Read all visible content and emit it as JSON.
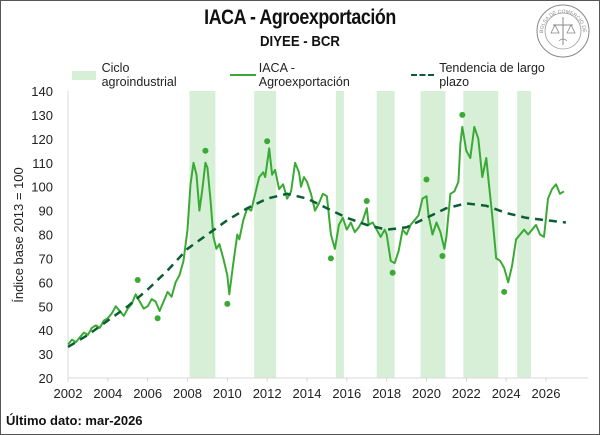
{
  "header": {
    "title": "IACA - Agroexportación",
    "subtitle": "DIYEE - BCR",
    "logo": "bolsa-de-comercio-de-rosario-seal-icon",
    "logo_text": "BOLSA DE COMERCIO DE ROSARIO"
  },
  "footer": {
    "label": "Último dato: mar-2026"
  },
  "colors": {
    "band": "#d6efd6",
    "series": "#3aaa35",
    "trend": "#0b5e34",
    "points": "#3aaa35"
  },
  "chart_data": {
    "type": "line",
    "title": "IACA - Agroexportación",
    "subtitle": "DIYEE - BCR",
    "xlabel": "",
    "ylabel": "Índice base 2013 = 100",
    "xlim": [
      2002,
      2028
    ],
    "ylim": [
      20,
      140
    ],
    "x_ticks": [
      2002,
      2004,
      2006,
      2008,
      2010,
      2012,
      2014,
      2016,
      2018,
      2020,
      2022,
      2024,
      2026
    ],
    "y_ticks": [
      20,
      30,
      40,
      50,
      60,
      70,
      80,
      90,
      100,
      110,
      120,
      130,
      140
    ],
    "grid": false,
    "legend": {
      "position": "top",
      "entries": [
        "Ciclo agroindustrial",
        "IACA - Agroexportación",
        "Tendencia de largo plazo"
      ]
    },
    "bands": [
      {
        "name": "Ciclo agroindustrial",
        "start": 2008.1,
        "end": 2009.4
      },
      {
        "name": "Ciclo agroindustrial",
        "start": 2011.35,
        "end": 2012.45
      },
      {
        "name": "Ciclo agroindustrial",
        "start": 2015.45,
        "end": 2015.85
      },
      {
        "name": "Ciclo agroindustrial",
        "start": 2017.5,
        "end": 2018.4
      },
      {
        "name": "Ciclo agroindustrial",
        "start": 2019.7,
        "end": 2020.95
      },
      {
        "name": "Ciclo agroindustrial",
        "start": 2021.85,
        "end": 2023.6
      },
      {
        "name": "Ciclo agroindustrial",
        "start": 2024.55,
        "end": 2025.25
      }
    ],
    "series": [
      {
        "name": "IACA - Agroexportación",
        "style": "solid",
        "points": [
          [
            2002.0,
            34
          ],
          [
            2002.2,
            36
          ],
          [
            2002.4,
            35
          ],
          [
            2002.6,
            37
          ],
          [
            2002.8,
            39
          ],
          [
            2003.0,
            38
          ],
          [
            2003.2,
            41
          ],
          [
            2003.4,
            42
          ],
          [
            2003.6,
            41
          ],
          [
            2003.8,
            44
          ],
          [
            2004.0,
            45
          ],
          [
            2004.2,
            47
          ],
          [
            2004.4,
            50
          ],
          [
            2004.6,
            48
          ],
          [
            2004.8,
            46
          ],
          [
            2005.0,
            49
          ],
          [
            2005.2,
            51
          ],
          [
            2005.4,
            55
          ],
          [
            2005.6,
            52
          ],
          [
            2005.8,
            49
          ],
          [
            2006.0,
            50
          ],
          [
            2006.2,
            53
          ],
          [
            2006.4,
            52
          ],
          [
            2006.6,
            48
          ],
          [
            2006.8,
            52
          ],
          [
            2007.0,
            56
          ],
          [
            2007.2,
            54
          ],
          [
            2007.4,
            60
          ],
          [
            2007.6,
            63
          ],
          [
            2007.8,
            69
          ],
          [
            2008.0,
            82
          ],
          [
            2008.15,
            101
          ],
          [
            2008.3,
            110
          ],
          [
            2008.45,
            105
          ],
          [
            2008.6,
            90
          ],
          [
            2008.75,
            99
          ],
          [
            2008.9,
            110
          ],
          [
            2009.0,
            108
          ],
          [
            2009.15,
            95
          ],
          [
            2009.3,
            79
          ],
          [
            2009.45,
            74
          ],
          [
            2009.6,
            76
          ],
          [
            2009.8,
            70
          ],
          [
            2010.0,
            63
          ],
          [
            2010.1,
            55
          ],
          [
            2010.3,
            68
          ],
          [
            2010.5,
            80
          ],
          [
            2010.6,
            78
          ],
          [
            2010.8,
            86
          ],
          [
            2011.0,
            91
          ],
          [
            2011.2,
            90
          ],
          [
            2011.4,
            97
          ],
          [
            2011.6,
            104
          ],
          [
            2011.8,
            106
          ],
          [
            2011.9,
            104
          ],
          [
            2012.0,
            110
          ],
          [
            2012.1,
            116
          ],
          [
            2012.25,
            105
          ],
          [
            2012.4,
            107
          ],
          [
            2012.6,
            99
          ],
          [
            2012.8,
            101
          ],
          [
            2013.0,
            95
          ],
          [
            2013.2,
            98
          ],
          [
            2013.4,
            110
          ],
          [
            2013.6,
            106
          ],
          [
            2013.7,
            100
          ],
          [
            2013.85,
            104
          ],
          [
            2014.0,
            102
          ],
          [
            2014.2,
            97
          ],
          [
            2014.4,
            90
          ],
          [
            2014.6,
            93
          ],
          [
            2014.8,
            97
          ],
          [
            2015.0,
            96
          ],
          [
            2015.2,
            80
          ],
          [
            2015.4,
            74
          ],
          [
            2015.6,
            84
          ],
          [
            2015.8,
            87
          ],
          [
            2016.0,
            82
          ],
          [
            2016.2,
            85
          ],
          [
            2016.4,
            81
          ],
          [
            2016.6,
            83
          ],
          [
            2016.8,
            86
          ],
          [
            2017.0,
            91
          ],
          [
            2017.1,
            84
          ],
          [
            2017.3,
            85
          ],
          [
            2017.5,
            82
          ],
          [
            2017.7,
            79
          ],
          [
            2017.9,
            82
          ],
          [
            2018.0,
            80
          ],
          [
            2018.2,
            69
          ],
          [
            2018.4,
            68
          ],
          [
            2018.6,
            73
          ],
          [
            2018.8,
            82
          ],
          [
            2019.0,
            80
          ],
          [
            2019.2,
            84
          ],
          [
            2019.4,
            86
          ],
          [
            2019.6,
            88
          ],
          [
            2019.8,
            95
          ],
          [
            2020.0,
            96
          ],
          [
            2020.1,
            88
          ],
          [
            2020.3,
            80
          ],
          [
            2020.5,
            85
          ],
          [
            2020.7,
            81
          ],
          [
            2020.9,
            74
          ],
          [
            2021.0,
            79
          ],
          [
            2021.2,
            97
          ],
          [
            2021.4,
            98
          ],
          [
            2021.6,
            102
          ],
          [
            2021.7,
            118
          ],
          [
            2021.8,
            125
          ],
          [
            2022.0,
            115
          ],
          [
            2022.2,
            112
          ],
          [
            2022.4,
            125
          ],
          [
            2022.6,
            120
          ],
          [
            2022.8,
            104
          ],
          [
            2023.0,
            112
          ],
          [
            2023.1,
            104
          ],
          [
            2023.3,
            88
          ],
          [
            2023.5,
            70
          ],
          [
            2023.7,
            69
          ],
          [
            2023.9,
            66
          ],
          [
            2024.0,
            63
          ],
          [
            2024.1,
            60
          ],
          [
            2024.3,
            67
          ],
          [
            2024.5,
            78
          ],
          [
            2024.7,
            80
          ],
          [
            2024.9,
            82
          ],
          [
            2025.1,
            80
          ],
          [
            2025.3,
            82
          ],
          [
            2025.5,
            84
          ],
          [
            2025.7,
            80
          ],
          [
            2025.9,
            79
          ],
          [
            2026.1,
            95
          ],
          [
            2026.3,
            99
          ],
          [
            2026.5,
            101
          ],
          [
            2026.7,
            97
          ],
          [
            2026.9,
            98
          ]
        ]
      },
      {
        "name": "Tendencia de largo plazo",
        "style": "dashed",
        "points": [
          [
            2002.0,
            33
          ],
          [
            2003.0,
            38
          ],
          [
            2004.0,
            44
          ],
          [
            2005.0,
            50
          ],
          [
            2006.0,
            57
          ],
          [
            2007.0,
            65
          ],
          [
            2008.0,
            74
          ],
          [
            2009.0,
            80
          ],
          [
            2010.0,
            86
          ],
          [
            2011.0,
            91
          ],
          [
            2012.0,
            95
          ],
          [
            2013.0,
            97
          ],
          [
            2014.0,
            95
          ],
          [
            2015.0,
            91
          ],
          [
            2016.0,
            87
          ],
          [
            2017.0,
            84
          ],
          [
            2018.0,
            82
          ],
          [
            2019.0,
            83
          ],
          [
            2020.0,
            87
          ],
          [
            2021.0,
            91
          ],
          [
            2022.0,
            93
          ],
          [
            2023.0,
            92
          ],
          [
            2024.0,
            89
          ],
          [
            2025.0,
            87
          ],
          [
            2026.0,
            86
          ],
          [
            2027.0,
            85
          ]
        ]
      }
    ],
    "markers": {
      "name": "Peaks and troughs",
      "points": [
        [
          2005.5,
          61
        ],
        [
          2006.5,
          45
        ],
        [
          2008.9,
          115
        ],
        [
          2010.0,
          51
        ],
        [
          2012.0,
          119
        ],
        [
          2015.2,
          70
        ],
        [
          2017.0,
          94
        ],
        [
          2018.3,
          64
        ],
        [
          2020.0,
          103
        ],
        [
          2020.8,
          71
        ],
        [
          2021.8,
          130
        ],
        [
          2023.9,
          56
        ]
      ]
    }
  }
}
